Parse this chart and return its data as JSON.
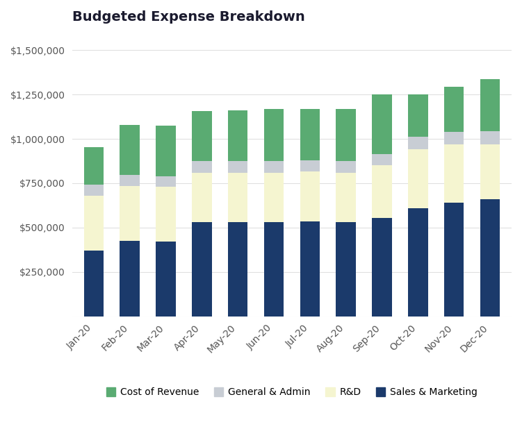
{
  "title": "Budgeted Expense Breakdown",
  "months": [
    "Jan-20",
    "Feb-20",
    "Mar-20",
    "Apr-20",
    "May-20",
    "Jun-20",
    "Jul-20",
    "Aug-20",
    "Sep-20",
    "Oct-20",
    "Nov-20",
    "Dec-20"
  ],
  "sales_marketing": [
    370000,
    425000,
    420000,
    530000,
    530000,
    530000,
    535000,
    530000,
    555000,
    610000,
    640000,
    660000
  ],
  "rd": [
    310000,
    310000,
    310000,
    280000,
    280000,
    280000,
    280000,
    280000,
    295000,
    330000,
    330000,
    310000
  ],
  "general_admin": [
    60000,
    60000,
    60000,
    65000,
    65000,
    65000,
    65000,
    65000,
    65000,
    70000,
    70000,
    75000
  ],
  "cost_of_revenue": [
    215000,
    285000,
    285000,
    280000,
    285000,
    295000,
    290000,
    295000,
    335000,
    240000,
    255000,
    290000
  ],
  "colors": {
    "sales_marketing": "#1b3a6b",
    "rd": "#f5f5d0",
    "general_admin": "#c8cdd4",
    "cost_of_revenue": "#5aab72"
  },
  "legend_labels": [
    "Cost of Revenue",
    "General & Admin",
    "R&D",
    "Sales & Marketing"
  ],
  "ylim": [
    0,
    1600000
  ],
  "yticks": [
    0,
    250000,
    500000,
    750000,
    1000000,
    1250000,
    1500000
  ],
  "background_color": "#ffffff",
  "title_fontsize": 14,
  "tick_fontsize": 10,
  "legend_fontsize": 10
}
